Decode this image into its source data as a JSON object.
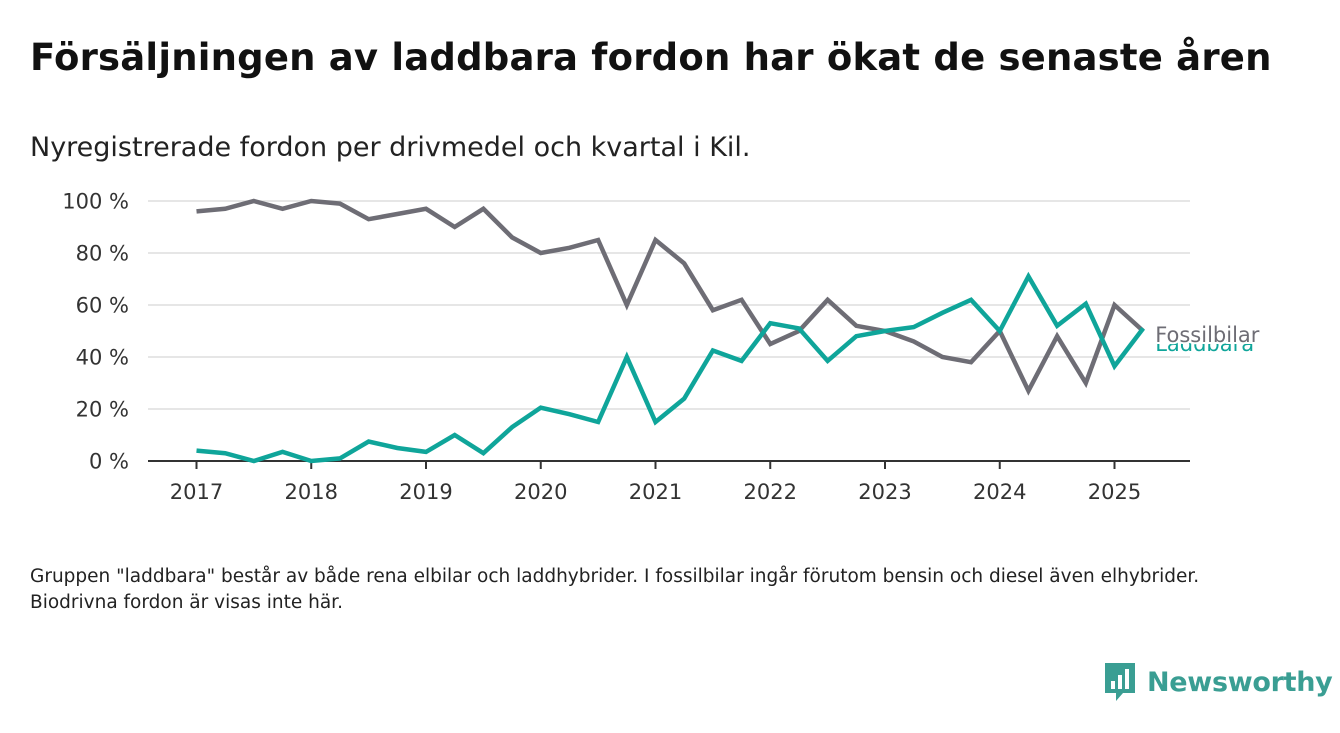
{
  "title": "Försäljningen av laddbara fordon har ökat de senaste åren",
  "subtitle": "Nyregistrerade fordon per drivmedel och kvartal i Kil.",
  "footnote": "Gruppen \"laddbara\" består av både rena elbilar och laddhybrider. I fossilbilar ingår förutom bensin och diesel även elhybrider. Biodrivna fordon är visas inte här.",
  "logo": {
    "text": "Newsworthy",
    "icon": "newsworthy-chart-icon",
    "color": "#3a9e93"
  },
  "chart_data": {
    "type": "line",
    "x": [
      "2017 Q1",
      "2017 Q2",
      "2017 Q3",
      "2017 Q4",
      "2018 Q1",
      "2018 Q2",
      "2018 Q3",
      "2018 Q4",
      "2019 Q1",
      "2019 Q2",
      "2019 Q3",
      "2019 Q4",
      "2020 Q1",
      "2020 Q2",
      "2020 Q3",
      "2020 Q4",
      "2021 Q1",
      "2021 Q2",
      "2021 Q3",
      "2021 Q4",
      "2022 Q1",
      "2022 Q2",
      "2022 Q3",
      "2022 Q4",
      "2023 Q1",
      "2023 Q2",
      "2023 Q3",
      "2023 Q4",
      "2024 Q1",
      "2024 Q2",
      "2024 Q3",
      "2024 Q4",
      "2025 Q1",
      "2025 Q2"
    ],
    "x_tick_labels": [
      "2017",
      "2018",
      "2019",
      "2020",
      "2021",
      "2022",
      "2023",
      "2024",
      "2025"
    ],
    "y_tick_labels": [
      "0 %",
      "20 %",
      "40 %",
      "60 %",
      "80 %",
      "100 %"
    ],
    "ylim": [
      0,
      100
    ],
    "grid": true,
    "series": [
      {
        "name": "Fossilbilar",
        "color": "#6e6d75",
        "values": [
          96,
          97,
          100,
          97,
          100,
          99,
          93,
          95,
          97,
          90,
          97,
          86,
          80,
          82,
          85,
          60,
          85,
          76,
          58,
          62,
          45,
          50,
          62,
          52,
          50,
          46,
          40,
          38,
          50,
          27,
          48,
          30,
          60,
          50
        ]
      },
      {
        "name": "Laddbara",
        "color": "#0fa59a",
        "values": [
          4,
          3,
          0,
          3.5,
          0,
          1,
          7.5,
          5,
          3.5,
          10,
          3,
          13,
          20.5,
          18,
          15,
          40,
          15,
          24,
          42.5,
          38.5,
          53,
          51,
          38.5,
          48,
          50,
          51.5,
          57,
          62,
          50,
          71,
          52,
          60.5,
          36.5,
          51
        ]
      }
    ]
  }
}
